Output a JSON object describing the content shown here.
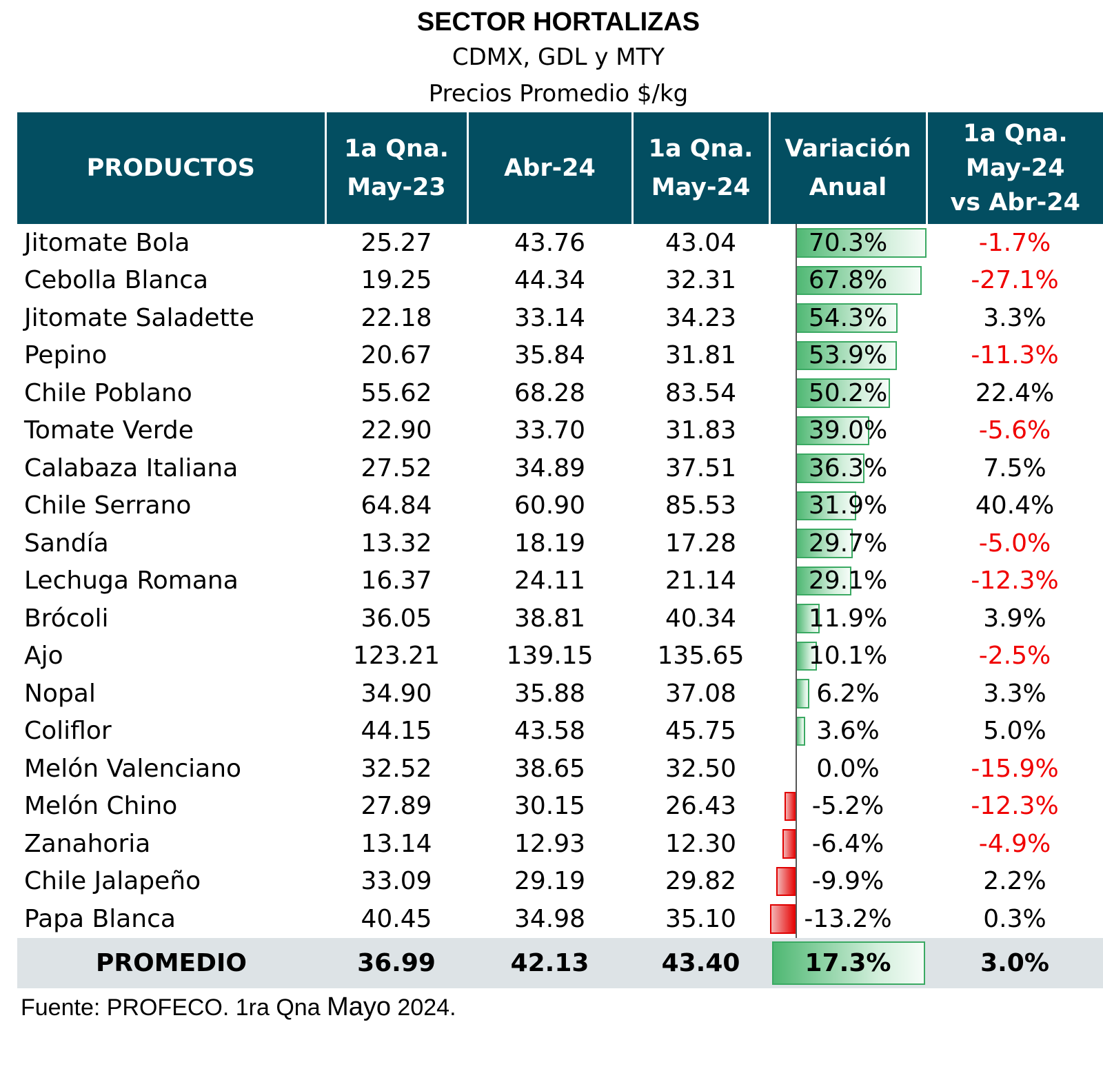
{
  "chart_data": {
    "type": "table",
    "title": "SECTOR HORTALIZAS",
    "subtitle": "CDMX, GDL y MTY",
    "subtitle2": "Precios Promedio $/kg",
    "columns": [
      "PRODUCTOS",
      "1a Qna. May-23",
      "Abr-24",
      "1a Qna. May-24",
      "Variación Anual",
      "1a Qna. May-24 vs Abr-24"
    ],
    "rows": [
      {
        "producto": "Jitomate Bola",
        "may23": "25.27",
        "abr24": "43.76",
        "may24": "43.04",
        "var_anual": "70.3%",
        "var_anual_value": 70.3,
        "var_mensual": "-1.7%"
      },
      {
        "producto": "Cebolla Blanca",
        "may23": "19.25",
        "abr24": "44.34",
        "may24": "32.31",
        "var_anual": "67.8%",
        "var_anual_value": 67.8,
        "var_mensual": "-27.1%"
      },
      {
        "producto": "Jitomate Saladette",
        "may23": "22.18",
        "abr24": "33.14",
        "may24": "34.23",
        "var_anual": "54.3%",
        "var_anual_value": 54.3,
        "var_mensual": "3.3%"
      },
      {
        "producto": "Pepino",
        "may23": "20.67",
        "abr24": "35.84",
        "may24": "31.81",
        "var_anual": "53.9%",
        "var_anual_value": 53.9,
        "var_mensual": "-11.3%"
      },
      {
        "producto": "Chile Poblano",
        "may23": "55.62",
        "abr24": "68.28",
        "may24": "83.54",
        "var_anual": "50.2%",
        "var_anual_value": 50.2,
        "var_mensual": "22.4%"
      },
      {
        "producto": "Tomate Verde",
        "may23": "22.90",
        "abr24": "33.70",
        "may24": "31.83",
        "var_anual": "39.0%",
        "var_anual_value": 39.0,
        "var_mensual": "-5.6%"
      },
      {
        "producto": "Calabaza Italiana",
        "may23": "27.52",
        "abr24": "34.89",
        "may24": "37.51",
        "var_anual": "36.3%",
        "var_anual_value": 36.3,
        "var_mensual": "7.5%"
      },
      {
        "producto": "Chile Serrano",
        "may23": "64.84",
        "abr24": "60.90",
        "may24": "85.53",
        "var_anual": "31.9%",
        "var_anual_value": 31.9,
        "var_mensual": "40.4%"
      },
      {
        "producto": "Sandía",
        "may23": "13.32",
        "abr24": "18.19",
        "may24": "17.28",
        "var_anual": "29.7%",
        "var_anual_value": 29.7,
        "var_mensual": "-5.0%"
      },
      {
        "producto": "Lechuga Romana",
        "may23": "16.37",
        "abr24": "24.11",
        "may24": "21.14",
        "var_anual": "29.1%",
        "var_anual_value": 29.1,
        "var_mensual": "-12.3%"
      },
      {
        "producto": "Brócoli",
        "may23": "36.05",
        "abr24": "38.81",
        "may24": "40.34",
        "var_anual": "11.9%",
        "var_anual_value": 11.9,
        "var_mensual": "3.9%"
      },
      {
        "producto": "Ajo",
        "may23": "123.21",
        "abr24": "139.15",
        "may24": "135.65",
        "var_anual": "10.1%",
        "var_anual_value": 10.1,
        "var_mensual": "-2.5%"
      },
      {
        "producto": "Nopal",
        "may23": "34.90",
        "abr24": "35.88",
        "may24": "37.08",
        "var_anual": "6.2%",
        "var_anual_value": 6.2,
        "var_mensual": "3.3%"
      },
      {
        "producto": "Coliflor",
        "may23": "44.15",
        "abr24": "43.58",
        "may24": "45.75",
        "var_anual": "3.6%",
        "var_anual_value": 3.6,
        "var_mensual": "5.0%"
      },
      {
        "producto": "Melón Valenciano",
        "may23": "32.52",
        "abr24": "38.65",
        "may24": "32.50",
        "var_anual": "0.0%",
        "var_anual_value": 0.0,
        "var_mensual": "-15.9%"
      },
      {
        "producto": "Melón Chino",
        "may23": "27.89",
        "abr24": "30.15",
        "may24": "26.43",
        "var_anual": "-5.2%",
        "var_anual_value": -5.2,
        "var_mensual": "-12.3%"
      },
      {
        "producto": "Zanahoria",
        "may23": "13.14",
        "abr24": "12.93",
        "may24": "12.30",
        "var_anual": "-6.4%",
        "var_anual_value": -6.4,
        "var_mensual": "-4.9%"
      },
      {
        "producto": "Chile Jalapeño",
        "may23": "33.09",
        "abr24": "29.19",
        "may24": "29.82",
        "var_anual": "-9.9%",
        "var_anual_value": -9.9,
        "var_mensual": "2.2%"
      },
      {
        "producto": "Papa Blanca",
        "may23": "40.45",
        "abr24": "34.98",
        "may24": "35.10",
        "var_anual": "-13.2%",
        "var_anual_value": -13.2,
        "var_mensual": "0.3%"
      }
    ],
    "average": {
      "producto": "PROMEDIO",
      "may23": "36.99",
      "abr24": "42.13",
      "may24": "43.40",
      "var_anual": "17.3%",
      "var_anual_value": 17.3,
      "var_mensual": "3.0%"
    },
    "colors": {
      "header_bg": "#034e61",
      "positive_bar": "#4fb873",
      "negative_bar": "#e50000",
      "negative_text": "#f00000",
      "average_row_bg": "#dde3e6"
    }
  },
  "footer": {
    "source": "Fuente: PROFECO. 1ra Qna ",
    "source_month": "Mayo",
    "source_year": " 2024."
  }
}
